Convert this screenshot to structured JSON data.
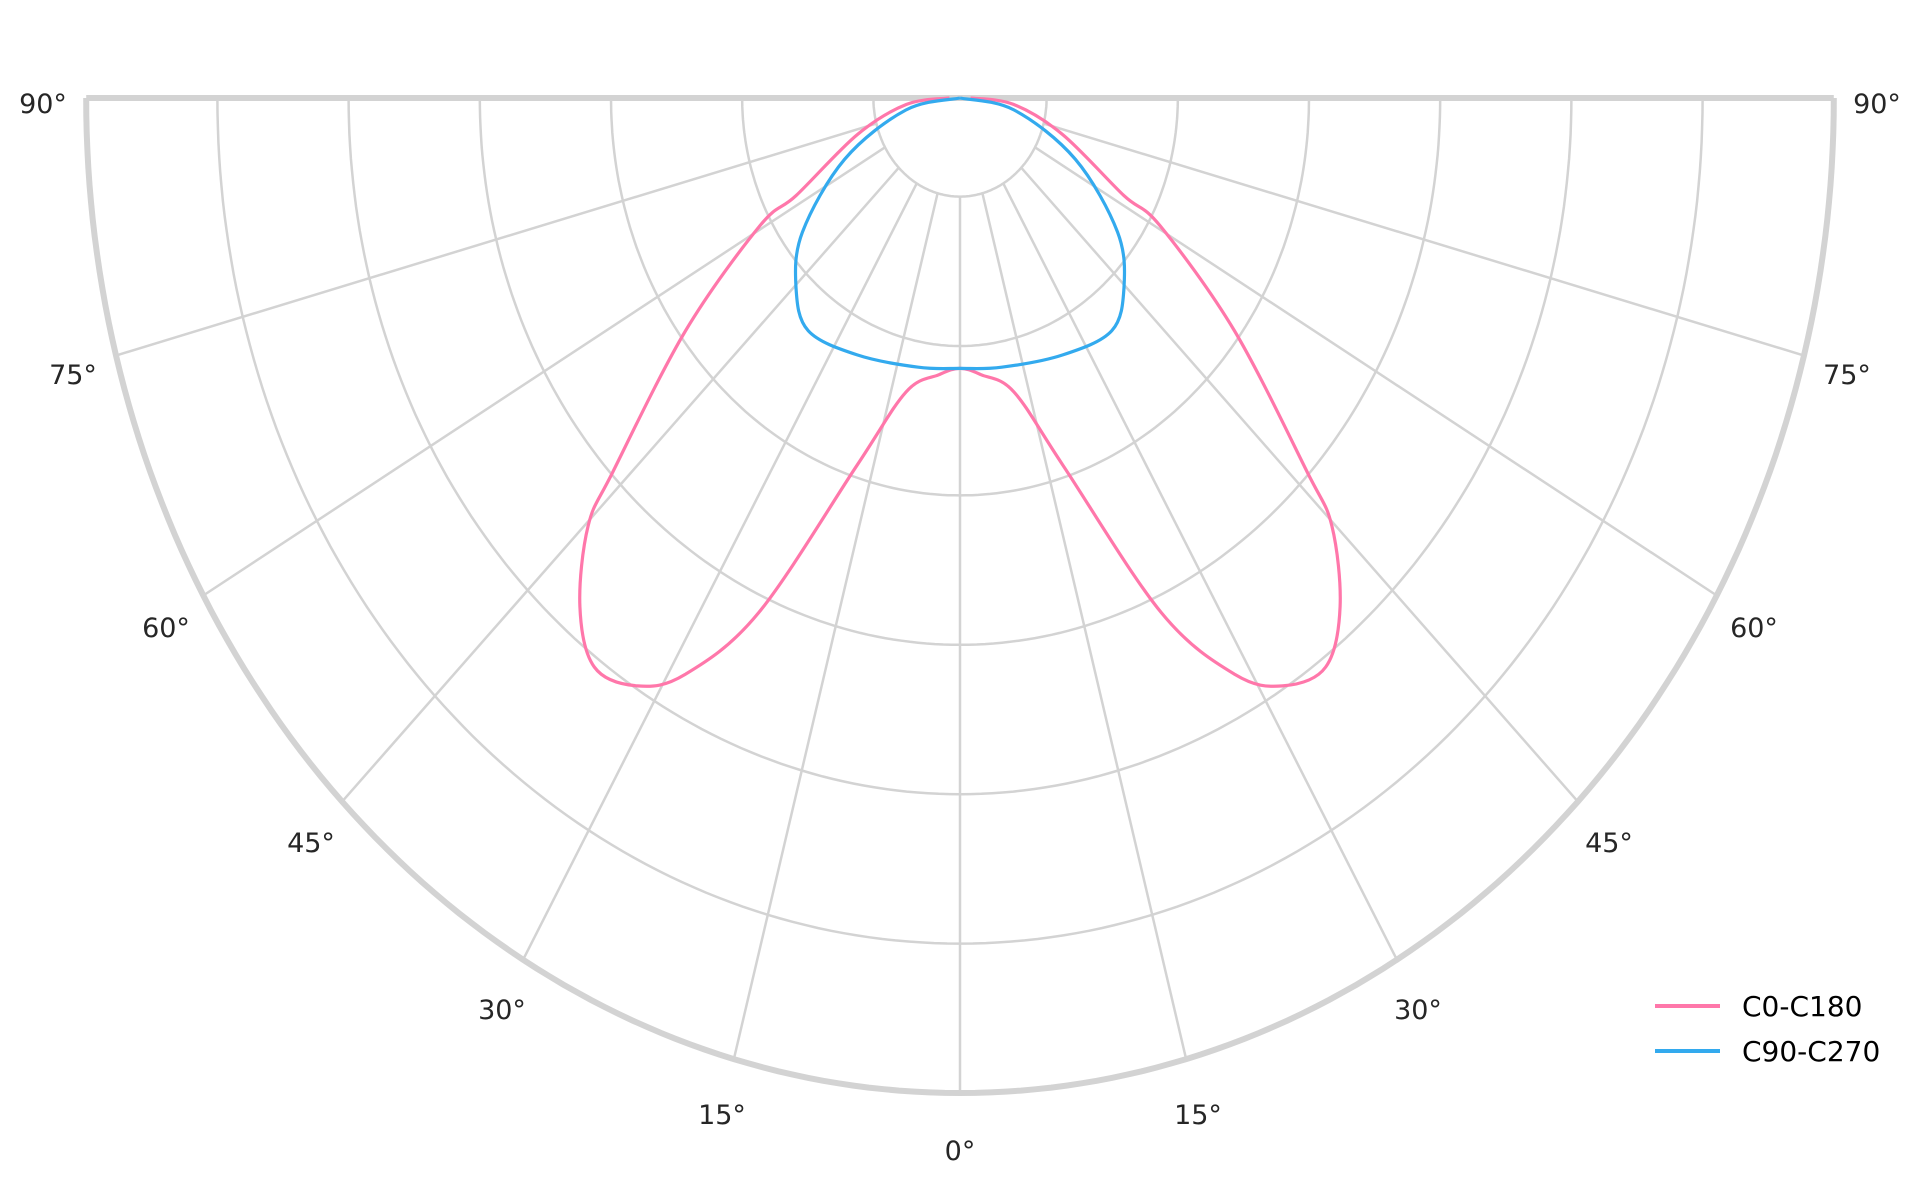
{
  "chart_data": {
    "type": "polar",
    "layout": "half-polar, 0° at bottom, angles mirrored left/right",
    "angle_ticks": [
      "0°",
      "15°",
      "30°",
      "45°",
      "60°",
      "75°",
      "90°"
    ],
    "angle_tick_values": [
      0,
      15,
      30,
      45,
      60,
      75,
      90
    ],
    "radial_grid": [
      0.66,
      1.66,
      2.66,
      3.66,
      4.66,
      5.66,
      6.66
    ],
    "radial_tick_labels": [],
    "rlim": [
      0,
      6.66
    ],
    "grid": true,
    "legend_position": "bottom-right",
    "series": [
      {
        "name": "C0-C180",
        "color": "#ff77aa",
        "angles": [
          0,
          5,
          11.8,
          17.7,
          24,
          28.5,
          32,
          36.2,
          40.4,
          44.7,
          46.6,
          53.3,
          60.7,
          62.4,
          72.6,
          84,
          90
        ],
        "values": [
          1.81,
          1.86,
          2.01,
          2.58,
          3.77,
          4.39,
          4.64,
          4.72,
          4.47,
          4.03,
          3.64,
          2.61,
          1.75,
          1.41,
          0.82,
          0.41,
          0.08
        ]
      },
      {
        "name": "C90-C270",
        "color": "#33aaee",
        "angles": [
          0,
          10,
          24.5,
          36.6,
          44.6,
          53.2,
          65,
          79,
          90
        ],
        "values": [
          1.81,
          1.83,
          1.89,
          1.94,
          1.78,
          1.5,
          0.97,
          0.42,
          0.0
        ]
      }
    ]
  }
}
